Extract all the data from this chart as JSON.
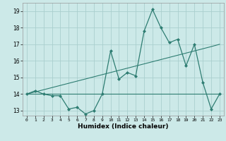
{
  "xlabel": "Humidex (Indice chaleur)",
  "bg_color": "#cce9e8",
  "grid_color": "#aacfce",
  "line_color": "#2e7d72",
  "xlim": [
    -0.5,
    23.5
  ],
  "ylim": [
    12.7,
    19.5
  ],
  "xticks": [
    0,
    1,
    2,
    3,
    4,
    5,
    6,
    7,
    8,
    9,
    10,
    11,
    12,
    13,
    14,
    15,
    16,
    17,
    18,
    19,
    20,
    21,
    22,
    23
  ],
  "yticks": [
    13,
    14,
    15,
    16,
    17,
    18,
    19
  ],
  "main_data": [
    14.0,
    14.2,
    14.0,
    13.9,
    13.9,
    13.1,
    13.2,
    12.8,
    13.0,
    14.0,
    16.6,
    14.9,
    15.3,
    15.1,
    17.8,
    19.1,
    18.0,
    17.1,
    17.3,
    15.7,
    17.0,
    14.7,
    13.1,
    14.0
  ],
  "trend_high": [
    14.0,
    14.13,
    14.26,
    14.39,
    14.52,
    14.65,
    14.78,
    14.91,
    15.04,
    15.17,
    15.3,
    15.43,
    15.56,
    15.69,
    15.82,
    15.95,
    16.08,
    16.21,
    16.34,
    16.47,
    16.6,
    16.73,
    16.86,
    17.0
  ],
  "trend_low": [
    14.0,
    14.0,
    14.0,
    14.0,
    14.0,
    14.0,
    14.0,
    14.0,
    14.0,
    14.0,
    14.0,
    14.0,
    14.0,
    14.0,
    14.0,
    14.0,
    14.0,
    14.0,
    14.0,
    14.0,
    14.0,
    14.0,
    14.0,
    14.0
  ]
}
